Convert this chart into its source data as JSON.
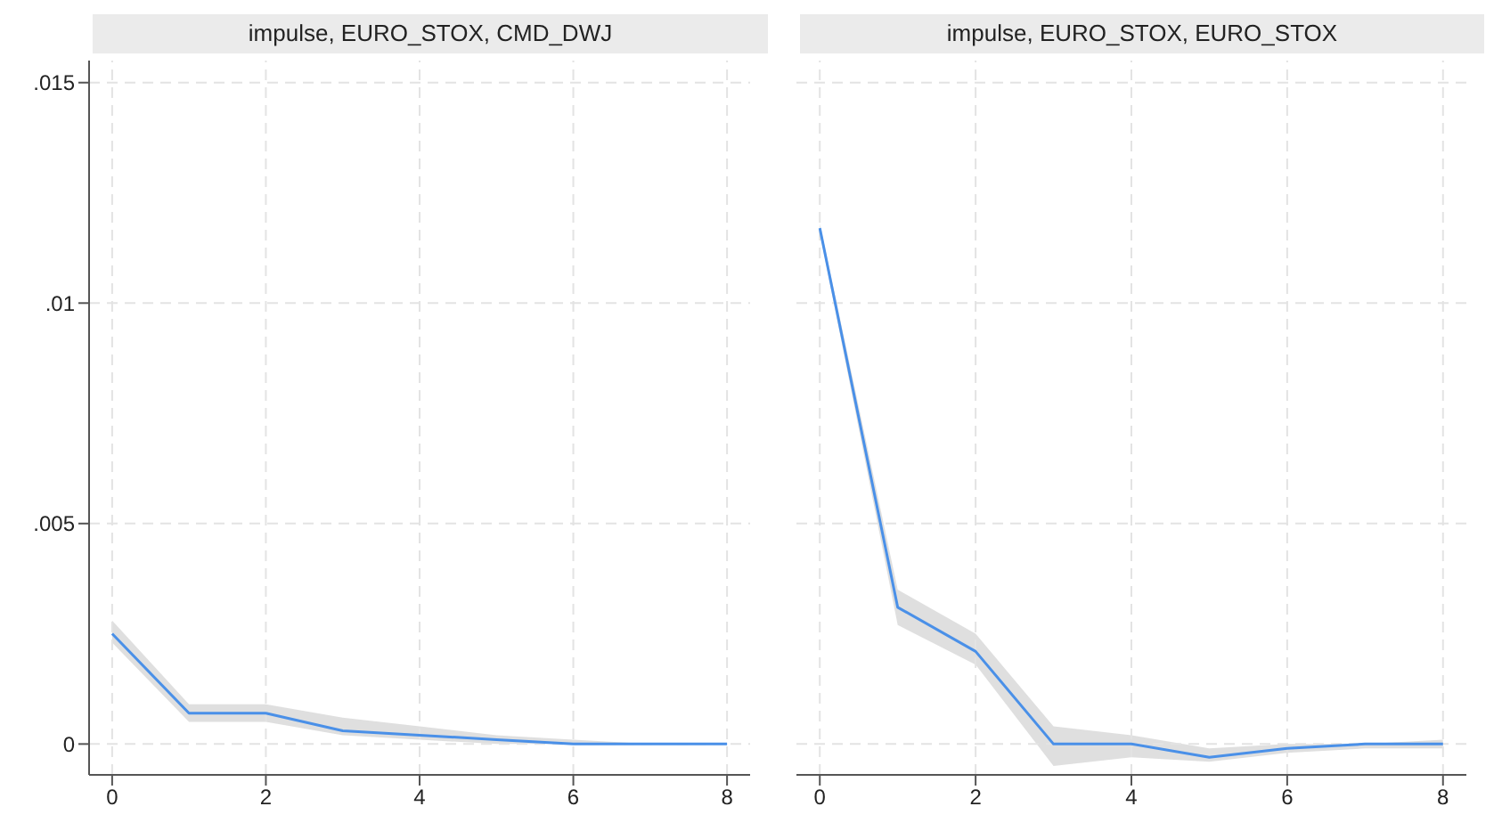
{
  "chart_data": [
    {
      "type": "line",
      "title": "impulse, EURO_STOX, CMD_DWJ",
      "x": [
        0,
        1,
        2,
        3,
        4,
        5,
        6,
        7,
        8
      ],
      "xlim": [
        -0.3,
        8.3
      ],
      "xticks": [
        0,
        2,
        4,
        6,
        8
      ],
      "ylim": [
        -0.0007,
        0.0155
      ],
      "yticks": [
        {
          "value": 0,
          "label": "0"
        },
        {
          "value": 0.005,
          "label": ".005"
        },
        {
          "value": 0.01,
          "label": ".01"
        },
        {
          "value": 0.015,
          "label": ".015"
        }
      ],
      "grid": true,
      "series": [
        {
          "color": "#4a90e8",
          "values": [
            0.0025,
            0.0007,
            0.0007,
            0.0003,
            0.0002,
            0.0001,
            0,
            0,
            0
          ],
          "lower": [
            0.0023,
            0.0005,
            0.0005,
            0.0002,
            0.0001,
            0,
            0,
            0,
            0
          ],
          "upper": [
            0.0028,
            0.0009,
            0.0009,
            0.0006,
            0.0004,
            0.0002,
            0.0001,
            0,
            0
          ]
        }
      ]
    },
    {
      "type": "line",
      "title": "impulse, EURO_STOX, EURO_STOX",
      "x": [
        0,
        1,
        2,
        3,
        4,
        5,
        6,
        7,
        8
      ],
      "xlim": [
        -0.3,
        8.3
      ],
      "xticks": [
        0,
        2,
        4,
        6,
        8
      ],
      "ylim": [
        -0.0007,
        0.0155
      ],
      "yticks": [
        0,
        0.005,
        0.01,
        0.015
      ],
      "grid": true,
      "tick_labels": "x",
      "series": [
        {
          "color": "#4a90e8",
          "values": [
            0.0117,
            0.0031,
            0.0021,
            0,
            0,
            -0.0003,
            -0.0001,
            0,
            0
          ],
          "lower": [
            0.0116,
            0.0027,
            0.0018,
            -0.0005,
            -0.0003,
            -0.0004,
            -0.0002,
            -0.0001,
            -0.0001
          ],
          "upper": [
            0.0118,
            0.0035,
            0.0025,
            0.0004,
            0.0002,
            -0.0001,
            0,
            0,
            0.0001
          ]
        }
      ]
    }
  ]
}
